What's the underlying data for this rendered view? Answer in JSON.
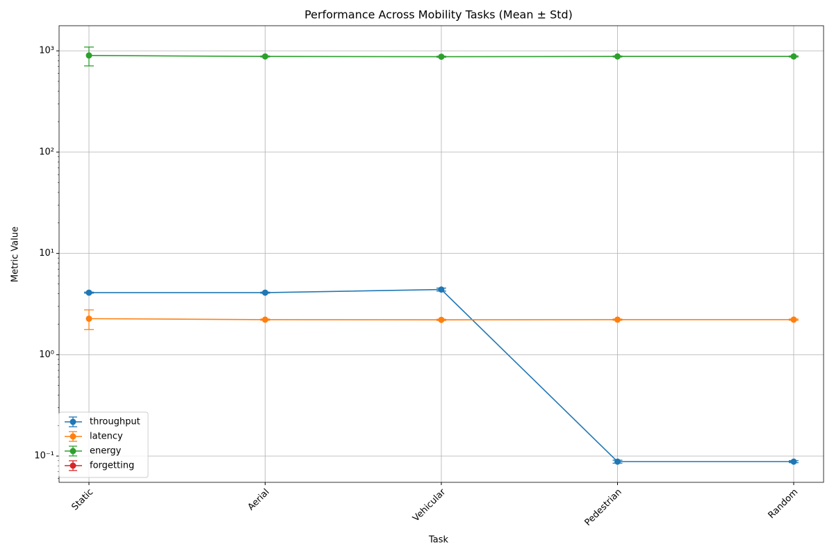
{
  "chart_data": {
    "type": "line",
    "title": "Performance Across Mobility Tasks (Mean ± Std)",
    "xlabel": "Task",
    "ylabel": "Metric Value",
    "categories": [
      "Static",
      "Aerial",
      "Vehicular",
      "Pedestrian",
      "Random"
    ],
    "log_y": true,
    "grid": true,
    "legend": "lower left",
    "ylim": [
      0.055,
      1770
    ],
    "yticks": [
      {
        "value": 0.1,
        "label": "10⁻¹"
      },
      {
        "value": 1,
        "label": "10⁰"
      },
      {
        "value": 10,
        "label": "10¹"
      },
      {
        "value": 100,
        "label": "10²"
      },
      {
        "value": 1000,
        "label": "10³"
      }
    ],
    "series": [
      {
        "name": "throughput",
        "color": "#1f77b4",
        "values": [
          4.1,
          4.1,
          4.4,
          0.088,
          0.088
        ],
        "errors": [
          0.05,
          0.05,
          0.15,
          0.003,
          0.002
        ]
      },
      {
        "name": "latency",
        "color": "#ff7f0e",
        "values": [
          2.27,
          2.22,
          2.21,
          2.22,
          2.22
        ],
        "errors": [
          0.5,
          0.03,
          0.03,
          0.03,
          0.03
        ]
      },
      {
        "name": "energy",
        "color": "#2ca02c",
        "values": [
          900,
          880,
          875,
          880,
          880
        ],
        "errors": [
          190,
          10,
          10,
          10,
          10
        ]
      },
      {
        "name": "forgetting",
        "color": "#d62728",
        "values": [
          null,
          null,
          null,
          null,
          null
        ],
        "errors": [
          null,
          null,
          null,
          null,
          null
        ]
      }
    ]
  }
}
